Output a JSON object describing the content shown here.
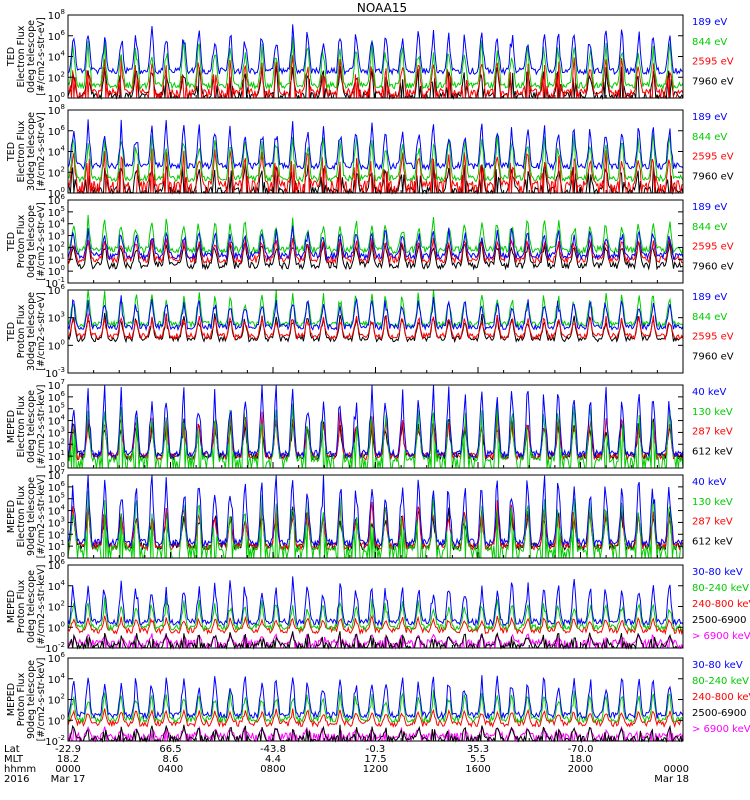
{
  "chart_data": {
    "type": "line",
    "title": "NOAA15",
    "panels": [
      {
        "ylabel": [
          "TED",
          "Electron Flux",
          "0deg telescope",
          "[#/cm2-s-str-eV]"
        ],
        "ylog": [
          0,
          8
        ],
        "ytick_exponents": [
          0,
          2,
          4,
          6,
          8
        ],
        "series": [
          {
            "name": "7960 eV",
            "color": "#000000",
            "base": 0.3,
            "spike": 3.0
          },
          {
            "name": "2595 eV",
            "color": "#ff0000",
            "base": 0.6,
            "spike": 3.6
          },
          {
            "name": "844 eV",
            "color": "#00cc00",
            "base": 1.2,
            "spike": 4.8
          },
          {
            "name": "189 eV",
            "color": "#0000ff",
            "base": 2.6,
            "spike": 4.6
          }
        ]
      },
      {
        "ylabel": [
          "TED",
          "Electron Flux",
          "30deg telescope",
          "[#/cm2-s-str-eV]"
        ],
        "ylog": [
          0,
          8
        ],
        "ytick_exponents": [
          0,
          2,
          4,
          6,
          8
        ],
        "series": [
          {
            "name": "7960 eV",
            "color": "#000000",
            "base": 0.3,
            "spike": 3.0
          },
          {
            "name": "2595 eV",
            "color": "#ff0000",
            "base": 0.9,
            "spike": 3.6
          },
          {
            "name": "844 eV",
            "color": "#00cc00",
            "base": 1.4,
            "spike": 4.8
          },
          {
            "name": "189 eV",
            "color": "#0000ff",
            "base": 2.6,
            "spike": 4.6
          }
        ]
      },
      {
        "ylabel": [
          "TED",
          "Proton Flux",
          "0deg telescope",
          "[#/cm2-s-str-eV]"
        ],
        "ylog": [
          -1,
          6
        ],
        "ytick_exponents": [
          -1,
          0,
          1,
          2,
          3,
          4,
          5,
          6
        ],
        "series": [
          {
            "name": "7960 eV",
            "color": "#000000",
            "base": 0.5,
            "spike": 2.4
          },
          {
            "name": "2595 eV",
            "color": "#ff0000",
            "base": 1.0,
            "spike": 2.0
          },
          {
            "name": "844 eV",
            "color": "#00cc00",
            "base": 1.8,
            "spike": 3.0
          },
          {
            "name": "189 eV",
            "color": "#0000ff",
            "base": 1.3,
            "spike": 2.6
          }
        ]
      },
      {
        "ylabel": [
          "TED",
          "Proton Flux",
          "30deg telescope",
          "[#/cm2-s-str-eV]"
        ],
        "ylog": [
          -3,
          6
        ],
        "ytick_exponents": [
          -3,
          0,
          3,
          6
        ],
        "series": [
          {
            "name": "7960 eV",
            "color": "#000000",
            "base": 0.7,
            "spike": 3.0
          },
          {
            "name": "2595 eV",
            "color": "#ff0000",
            "base": 1.0,
            "spike": 2.5
          },
          {
            "name": "844 eV",
            "color": "#00cc00",
            "base": 2.3,
            "spike": 4.0
          },
          {
            "name": "189 eV",
            "color": "#0000ff",
            "base": 2.0,
            "spike": 3.5
          }
        ]
      },
      {
        "ylabel": [
          "MEPED",
          "Electron Flux",
          "0deg telescope",
          "[#/cm2-s-str-keV]"
        ],
        "ylog": [
          0,
          7
        ],
        "ytick_exponents": [
          0,
          1,
          2,
          3,
          4,
          5,
          6,
          7
        ],
        "series": [
          {
            "name": "612 keV",
            "color": "#000000",
            "base": 1.0,
            "spike": 3.5
          },
          {
            "name": "287 keV",
            "color": "#ff0000",
            "base": 1.0,
            "spike": 4.0
          },
          {
            "name": "130 keV",
            "color": "#00cc00",
            "base": 0.8,
            "spike": 5.0
          },
          {
            "name": "40 keV",
            "color": "#0000ff",
            "base": 1.2,
            "spike": 6.5
          }
        ]
      },
      {
        "ylabel": [
          "MEPED",
          "Electron Flux",
          "90deg telescope",
          "[#/cm2-s-str-keV]"
        ],
        "ylog": [
          0,
          7
        ],
        "ytick_exponents": [
          0,
          1,
          2,
          3,
          4,
          5,
          6,
          7
        ],
        "series": [
          {
            "name": "612 keV",
            "color": "#000000",
            "base": 1.0,
            "spike": 3.5
          },
          {
            "name": "287 keV",
            "color": "#ff0000",
            "base": 1.0,
            "spike": 4.0
          },
          {
            "name": "130 keV",
            "color": "#00cc00",
            "base": 0.8,
            "spike": 5.0
          },
          {
            "name": "40 keV",
            "color": "#0000ff",
            "base": 1.3,
            "spike": 6.5
          }
        ]
      },
      {
        "ylabel": [
          "MEPED",
          "Proton Flux",
          "0deg telescope",
          "[#/cm2-s-str-keV]"
        ],
        "ylog": [
          -2,
          6
        ],
        "ytick_exponents": [
          -2,
          0,
          2,
          4,
          6
        ],
        "series": [
          {
            "name": "> 6900 keV",
            "color": "#ff00ff",
            "base": -1.5,
            "spike": 1.0
          },
          {
            "name": "2500-6900",
            "color": "#000000",
            "base": -1.8,
            "spike": 1.5
          },
          {
            "name": "240-800 keV",
            "color": "#ff0000",
            "base": -0.3,
            "spike": 1.5
          },
          {
            "name": "80-240 keV",
            "color": "#00cc00",
            "base": 0.0,
            "spike": 3.0
          },
          {
            "name": "30-80 keV",
            "color": "#0000ff",
            "base": 0.5,
            "spike": 4.5
          }
        ]
      },
      {
        "ylabel": [
          "MEPED",
          "Proton Flux",
          "90deg telescope",
          "[#/cm2-s-str-keV]"
        ],
        "ylog": [
          -2,
          6
        ],
        "ytick_exponents": [
          -2,
          0,
          2,
          4,
          6
        ],
        "series": [
          {
            "name": "> 6900 keV",
            "color": "#ff00ff",
            "base": -1.5,
            "spike": 1.0
          },
          {
            "name": "2500-6900",
            "color": "#000000",
            "base": -1.8,
            "spike": 1.5
          },
          {
            "name": "240-800 keV",
            "color": "#ff0000",
            "base": -0.3,
            "spike": 1.5
          },
          {
            "name": "80-240 keV",
            "color": "#00cc00",
            "base": 0.1,
            "spike": 3.0
          },
          {
            "name": "30-80 keV",
            "color": "#0000ff",
            "base": 0.5,
            "spike": 4.5
          }
        ]
      }
    ],
    "x_axis": {
      "row_labels": [
        "Lat",
        "MLT",
        "hhmm",
        "2016"
      ],
      "ticks": [
        {
          "lat": "-22.9",
          "mlt": "18.2",
          "hhmm": "0000",
          "date": "Mar 17"
        },
        {
          "lat": "66.5",
          "mlt": "8.6",
          "hhmm": "0400",
          "date": ""
        },
        {
          "lat": "-43.8",
          "mlt": "4.4",
          "hhmm": "0800",
          "date": ""
        },
        {
          "lat": "-0.3",
          "mlt": "17.5",
          "hhmm": "1200",
          "date": ""
        },
        {
          "lat": "35.3",
          "mlt": "5.5",
          "hhmm": "1600",
          "date": ""
        },
        {
          "lat": "-70.0",
          "mlt": "18.0",
          "hhmm": "2000",
          "date": ""
        },
        {
          "lat": "",
          "mlt": "",
          "hhmm": "0000",
          "date": "Mar 18"
        }
      ]
    }
  }
}
